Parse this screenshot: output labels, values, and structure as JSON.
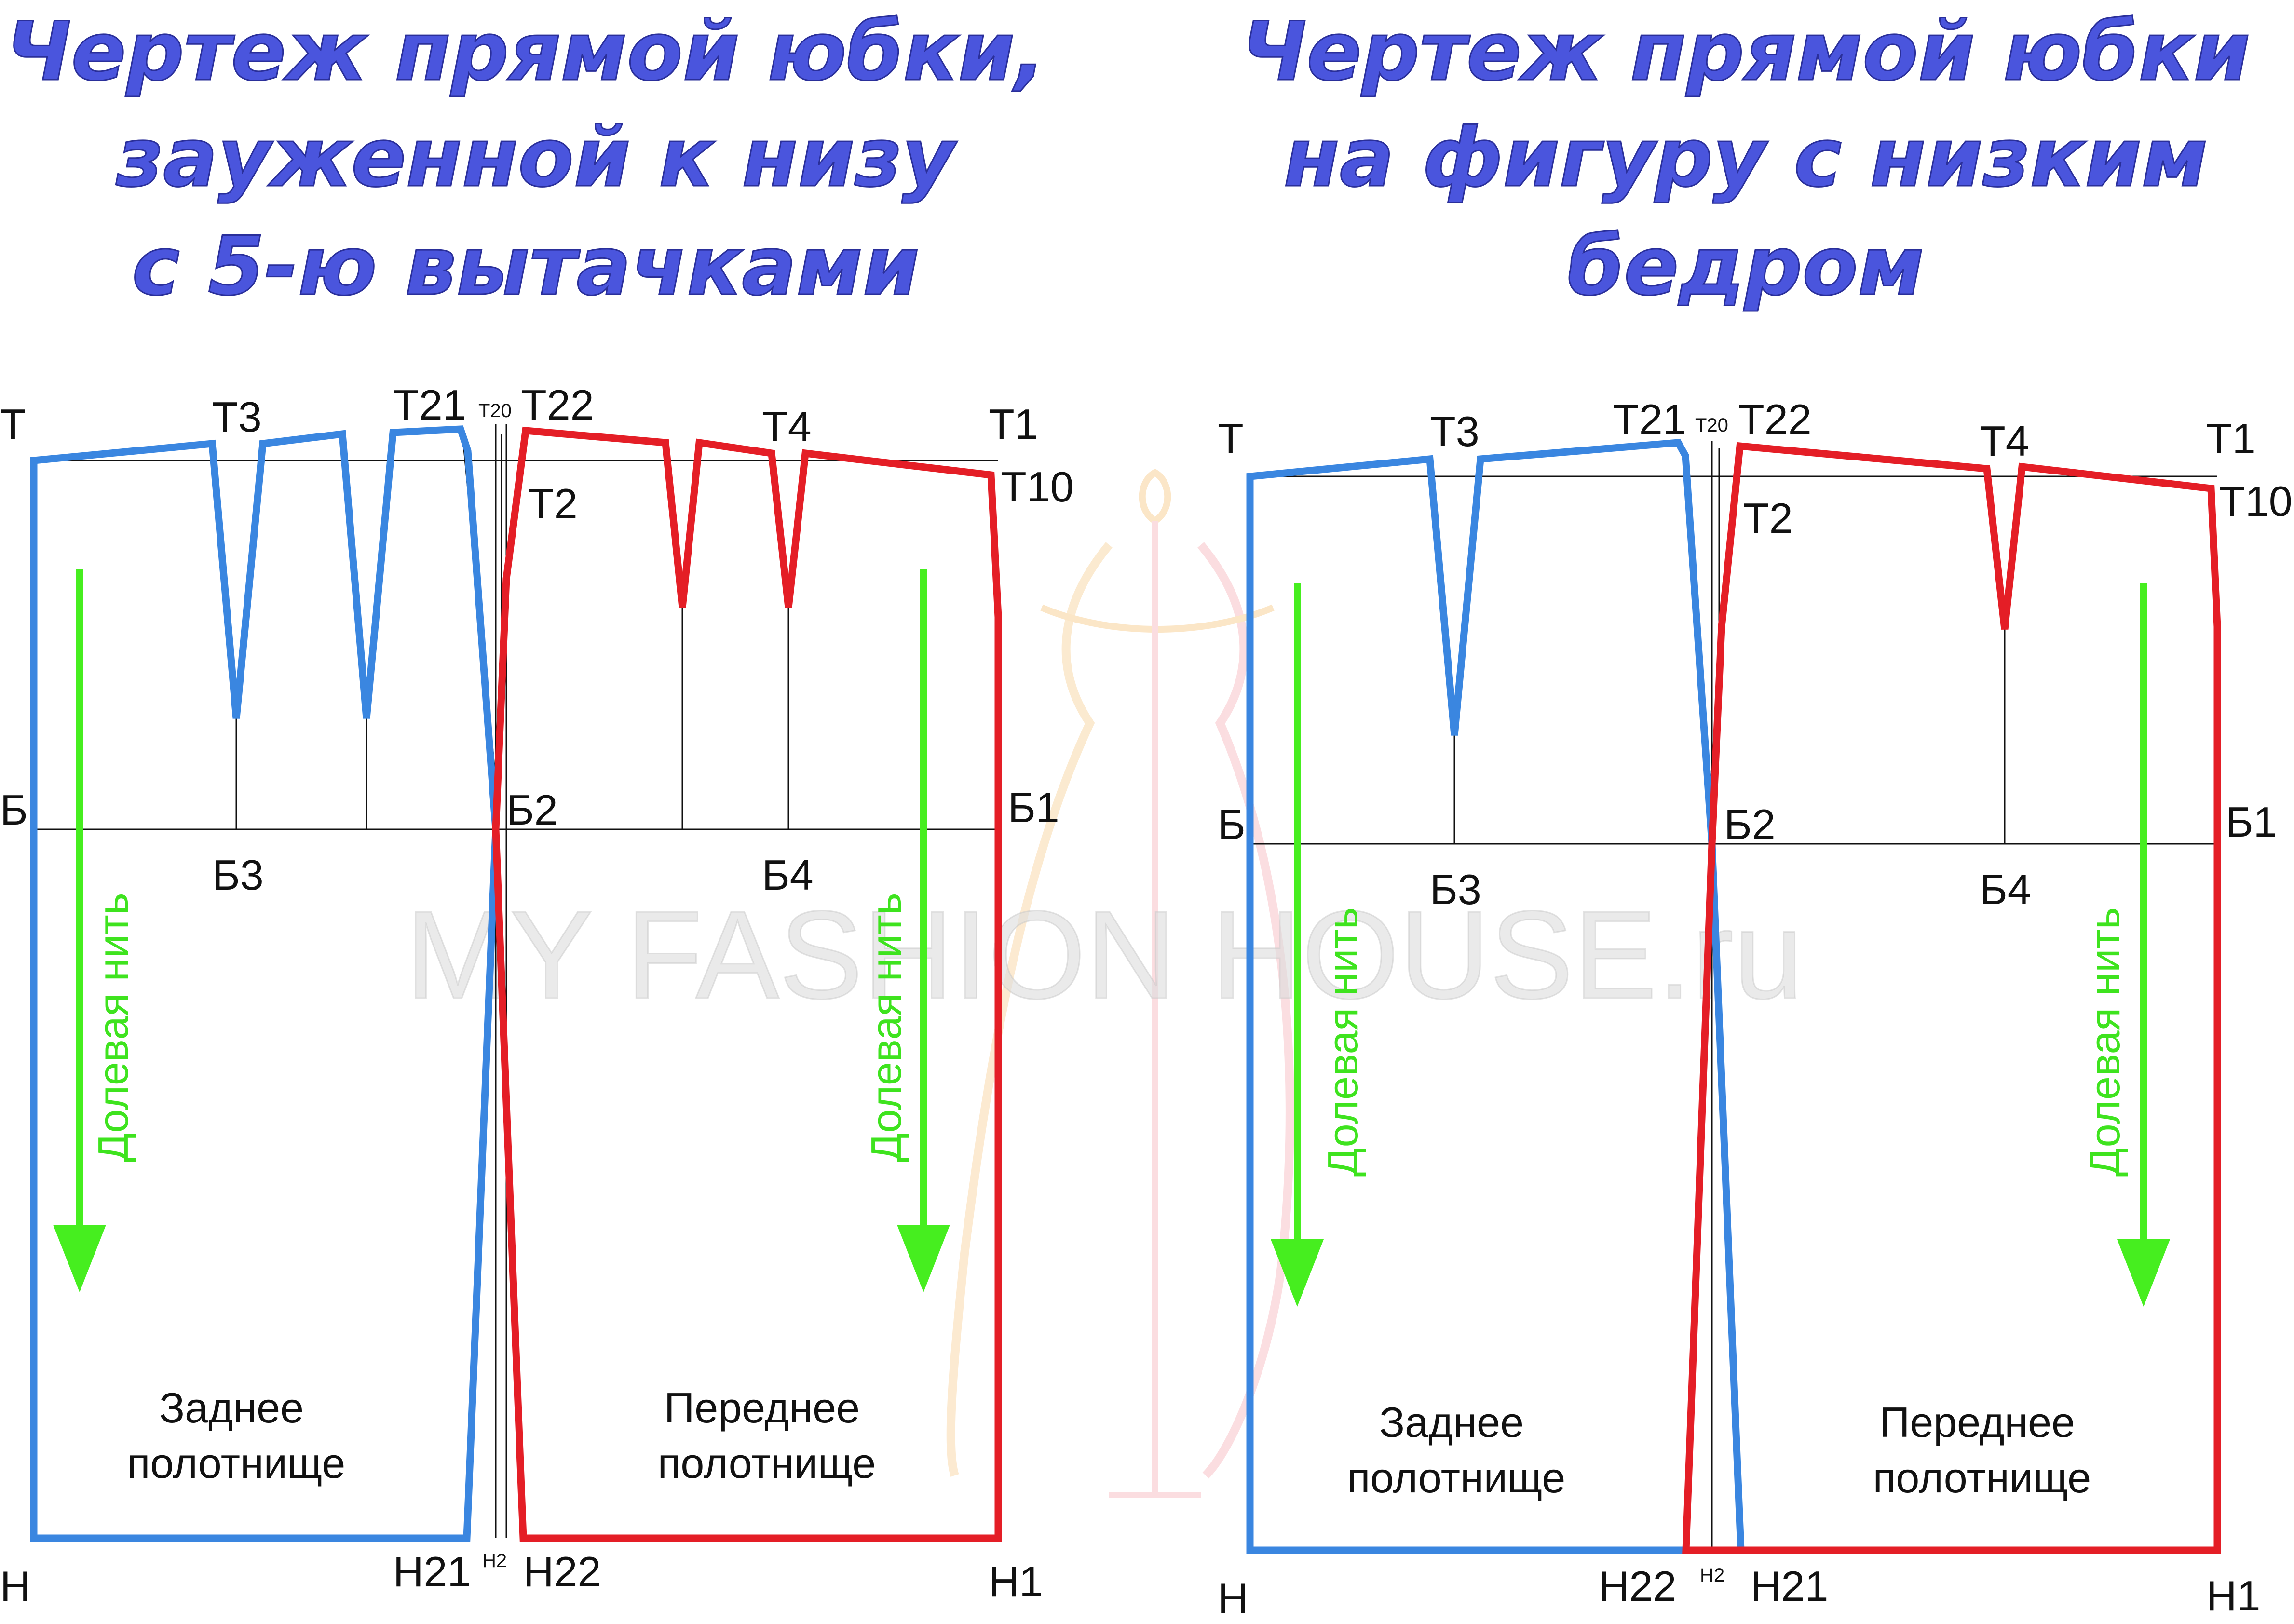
{
  "titles": {
    "left": [
      "Чертеж прямой юбки,",
      "зауженной к низу",
      "с 5-ю вытачками"
    ],
    "right": [
      "Чертеж прямой юбки",
      "на фигуру с низким",
      "бедром"
    ]
  },
  "watermark": "MY FASHION HOUSE.ru",
  "colors": {
    "title": "#4a55dd",
    "back_panel": "#3a86e0",
    "front_panel": "#e41e26",
    "grain_line": "#46ee1f"
  },
  "left_diagram": {
    "points": {
      "T": "Т",
      "T3": "Т3",
      "T21": "Т21",
      "T20": "Т20",
      "T22": "Т22",
      "T4": "Т4",
      "T1": "Т1",
      "T2": "Т2",
      "T10": "Т10",
      "B": "Б",
      "B2": "Б2",
      "B1": "Б1",
      "B3": "Б3",
      "B4": "Б4",
      "H": "Н",
      "H21": "Н21",
      "H2": "Н2",
      "H22": "Н22",
      "H1": "Н1"
    },
    "grain_label": "Долевая нить",
    "back_panel": [
      "Заднее",
      "полотнище"
    ],
    "front_panel": [
      "Переднее",
      "полотнище"
    ]
  },
  "right_diagram": {
    "points": {
      "T": "Т",
      "T3": "Т3",
      "T21": "Т21",
      "T20": "Т20",
      "T22": "Т22",
      "T4": "Т4",
      "T1": "Т1",
      "T2": "Т2",
      "T10": "Т10",
      "B": "Б",
      "B2": "Б2",
      "B1": "Б1",
      "B3": "Б3",
      "B4": "Б4",
      "H": "Н",
      "H22": "Н22",
      "H2": "Н2",
      "H21": "Н21",
      "H1": "Н1"
    },
    "grain_label": "Долевая нить",
    "back_panel": [
      "Заднее",
      "полотнище"
    ],
    "front_panel": [
      "Переднее",
      "полотнище"
    ]
  }
}
